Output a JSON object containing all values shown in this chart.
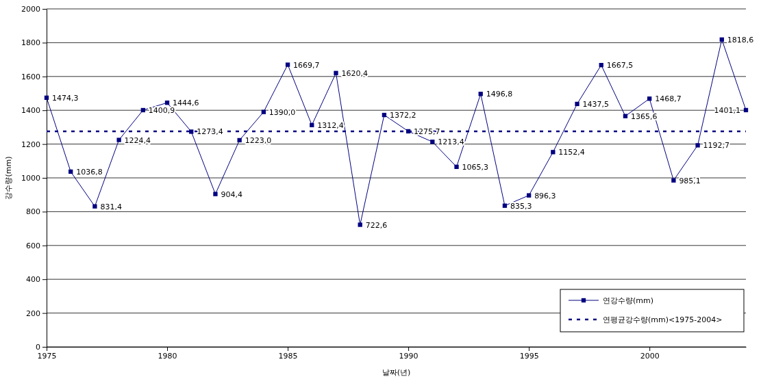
{
  "chart_data": {
    "type": "line",
    "xlabel": "날짜(년)",
    "ylabel": "강수량(mm)",
    "xlim": [
      1975,
      2004
    ],
    "xticks": [
      1975,
      1980,
      1985,
      1990,
      1995,
      2000
    ],
    "ylim": [
      0,
      2000
    ],
    "yticks": [
      0,
      200,
      400,
      600,
      800,
      1000,
      1200,
      1400,
      1600,
      1800,
      2000
    ],
    "grid": "y",
    "legend": "bottom right",
    "series": [
      {
        "name": "연강수량(mm)",
        "color": "#000080",
        "marker": "square",
        "line_style": "solid",
        "x": [
          1975,
          1976,
          1977,
          1978,
          1979,
          1980,
          1981,
          1982,
          1983,
          1984,
          1985,
          1986,
          1987,
          1988,
          1989,
          1990,
          1991,
          1992,
          1993,
          1994,
          1995,
          1996,
          1997,
          1998,
          1999,
          2000,
          2001,
          2002,
          2003,
          2004
        ],
        "values": [
          1474.3,
          1036.8,
          831.4,
          1224.4,
          1400.9,
          1444.6,
          1273.4,
          904.4,
          1223.0,
          1390.0,
          1669.7,
          1312.4,
          1620.4,
          722.6,
          1372.2,
          1275.7,
          1213.4,
          1065.3,
          1496.8,
          835.3,
          896.3,
          1152.4,
          1437.5,
          1667.5,
          1365.6,
          1468.7,
          985.1,
          1192.7,
          1818.6,
          1401.1
        ],
        "value_labels": [
          "1474,3",
          "1036,8",
          "831,4",
          "1224,4",
          "1400,9",
          "1444,6",
          "1273,4",
          "904,4",
          "1223,0",
          "1390,0",
          "1669,7",
          "1312,4",
          "1620,4",
          "722,6",
          "1372,2",
          "1275,7",
          "1213,4",
          "1065,3",
          "1496,8",
          "835,3",
          "896,3",
          "1152,4",
          "1437,5",
          "1667,5",
          "1365,6",
          "1468,7",
          "985,1",
          "1192,7",
          "1818,6",
          "1401,1"
        ]
      },
      {
        "name": "연평균강수량(mm)<1975-2004>",
        "color": "#000080",
        "marker": "none",
        "line_style": "dashed",
        "x": [
          1975,
          2004
        ],
        "values": [
          1275,
          1275
        ]
      }
    ]
  }
}
